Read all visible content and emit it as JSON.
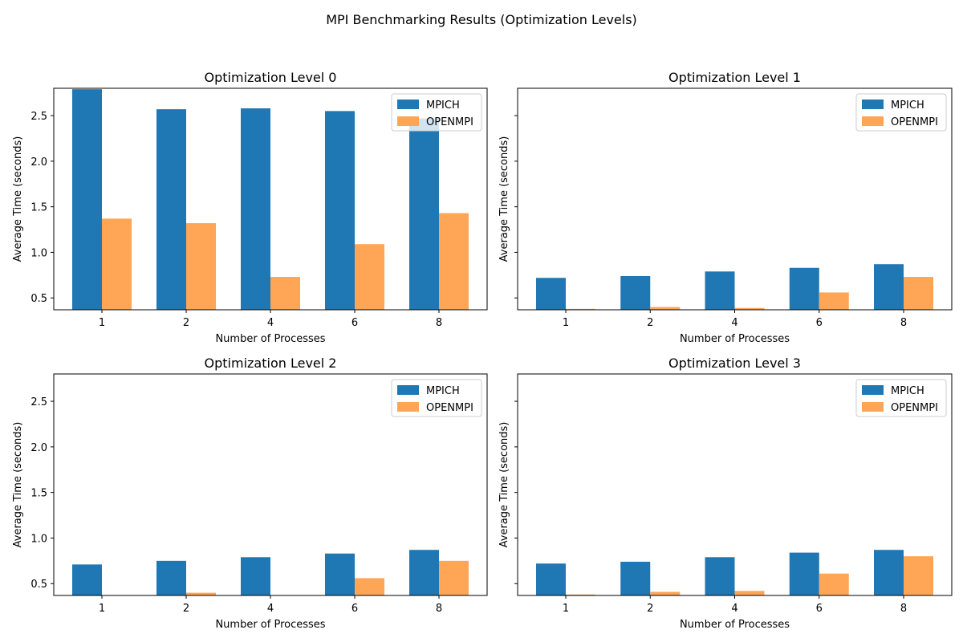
{
  "title": "MPI Benchmarking Results (Optimization Levels)",
  "colors": {
    "MPICH": "#1f77b4",
    "OPENMPI": "#ffa556"
  },
  "chart_data": [
    {
      "type": "bar",
      "title": "Optimization Level 0",
      "xlabel": "Number of Processes",
      "ylabel": "Average Time (seconds)",
      "categories": [
        "1",
        "2",
        "4",
        "6",
        "8"
      ],
      "ylim": [
        0.37,
        2.8
      ],
      "yticks": [
        "0.5",
        "1.0",
        "1.5",
        "2.0",
        "2.5"
      ],
      "show_ytick_labels": true,
      "legend_position": "top-right",
      "series": [
        {
          "name": "MPICH",
          "values": [
            2.79,
            2.57,
            2.58,
            2.55,
            2.47
          ]
        },
        {
          "name": "OPENMPI",
          "values": [
            1.37,
            1.32,
            0.73,
            1.09,
            1.43
          ]
        }
      ]
    },
    {
      "type": "bar",
      "title": "Optimization Level 1",
      "xlabel": "Number of Processes",
      "ylabel": "Average Time (seconds)",
      "categories": [
        "1",
        "2",
        "4",
        "6",
        "8"
      ],
      "ylim": [
        0.37,
        2.8
      ],
      "yticks": [
        "0.5",
        "1.0",
        "1.5",
        "2.0",
        "2.5"
      ],
      "show_ytick_labels": false,
      "legend_position": "top-right",
      "series": [
        {
          "name": "MPICH",
          "values": [
            0.72,
            0.74,
            0.79,
            0.83,
            0.87
          ]
        },
        {
          "name": "OPENMPI",
          "values": [
            0.38,
            0.4,
            0.39,
            0.56,
            0.73
          ]
        }
      ]
    },
    {
      "type": "bar",
      "title": "Optimization Level 2",
      "xlabel": "Number of Processes",
      "ylabel": "Average Time (seconds)",
      "categories": [
        "1",
        "2",
        "4",
        "6",
        "8"
      ],
      "ylim": [
        0.37,
        2.8
      ],
      "yticks": [
        "0.5",
        "1.0",
        "1.5",
        "2.0",
        "2.5"
      ],
      "show_ytick_labels": true,
      "legend_position": "top-right",
      "series": [
        {
          "name": "MPICH",
          "values": [
            0.71,
            0.75,
            0.79,
            0.83,
            0.87
          ]
        },
        {
          "name": "OPENMPI",
          "values": [
            0.36,
            0.4,
            0.36,
            0.56,
            0.75
          ]
        }
      ]
    },
    {
      "type": "bar",
      "title": "Optimization Level 3",
      "xlabel": "Number of Processes",
      "ylabel": "Average Time (seconds)",
      "categories": [
        "1",
        "2",
        "4",
        "6",
        "8"
      ],
      "ylim": [
        0.37,
        2.8
      ],
      "yticks": [
        "0.5",
        "1.0",
        "1.5",
        "2.0",
        "2.5"
      ],
      "show_ytick_labels": false,
      "legend_position": "top-right",
      "series": [
        {
          "name": "MPICH",
          "values": [
            0.72,
            0.74,
            0.79,
            0.84,
            0.87
          ]
        },
        {
          "name": "OPENMPI",
          "values": [
            0.38,
            0.41,
            0.42,
            0.61,
            0.8
          ]
        }
      ]
    }
  ]
}
